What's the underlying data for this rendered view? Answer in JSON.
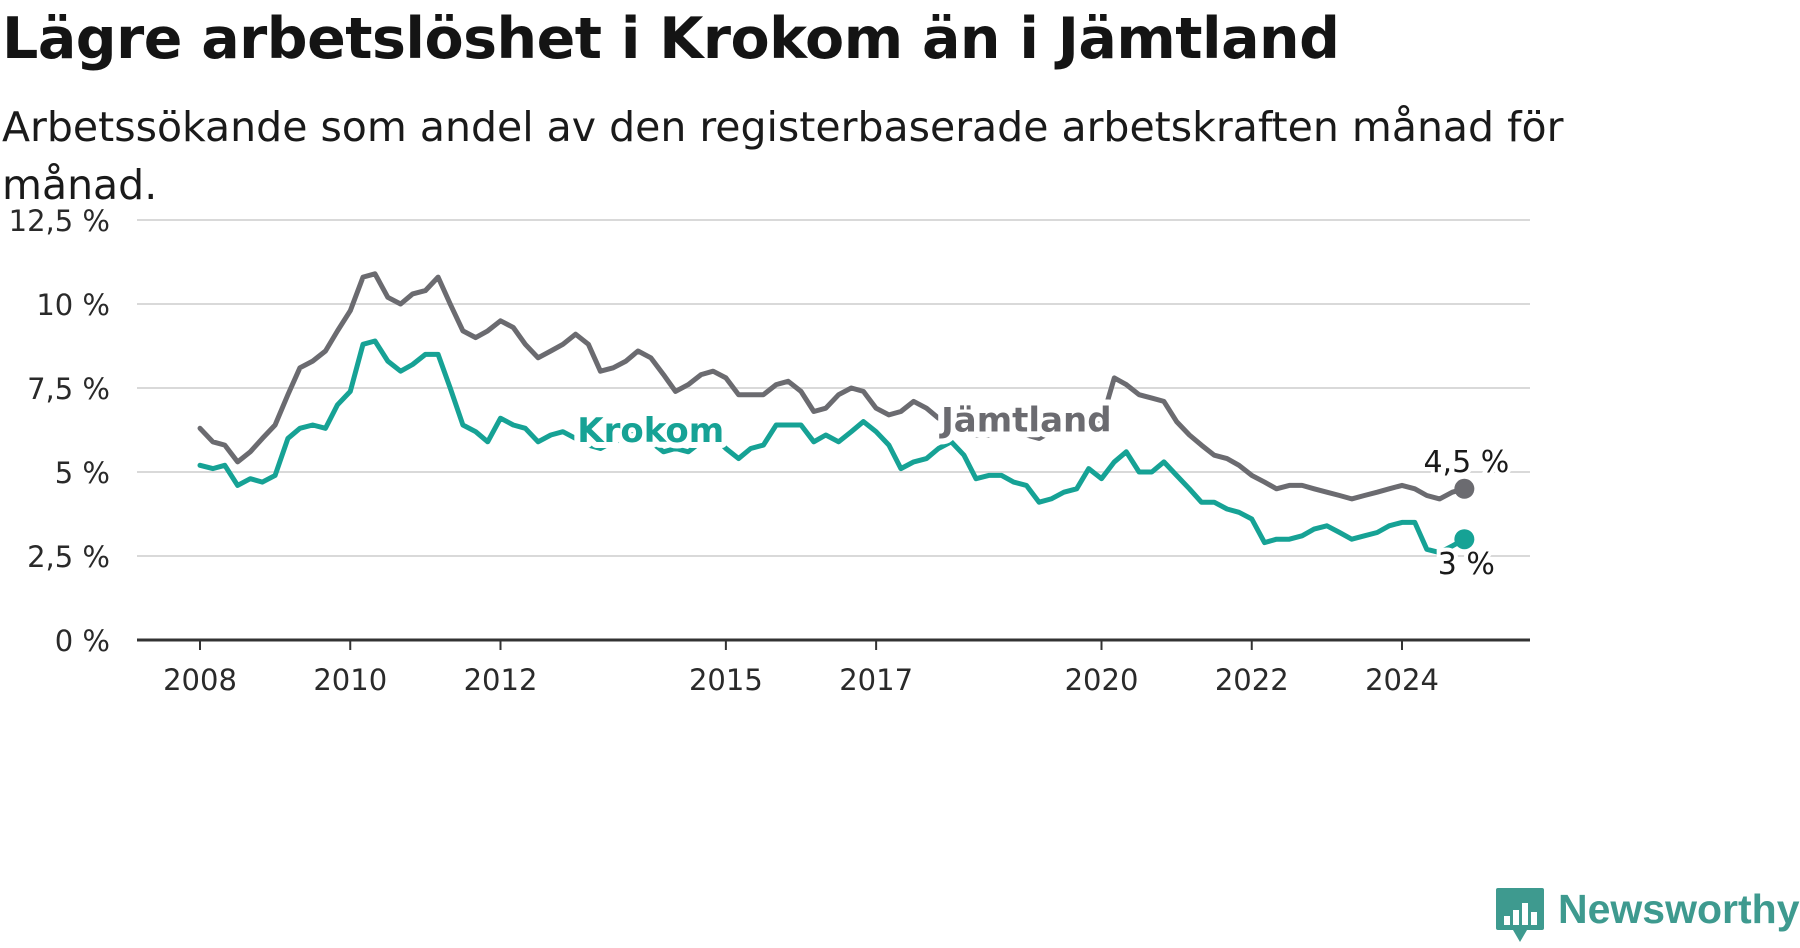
{
  "title": "Lägre arbetslöshet i Krokom än i Jämtland",
  "subtitle": "Arbetssökande som andel av den registerbaserade arbetskraften månad för månad.",
  "brand": {
    "name": "Newsworthy",
    "icon": "bar-chart-pin-icon"
  },
  "chart_data": {
    "type": "line",
    "title": "Lägre arbetslöshet i Krokom än i Jämtland",
    "subtitle": "Arbetssökande som andel av den registerbaserade arbetskraften månad för månad.",
    "ylim": [
      0,
      12.5
    ],
    "y_ticks": [
      0,
      2.5,
      5,
      7.5,
      10,
      12.5
    ],
    "y_tick_labels": [
      "0 %",
      "2,5 %",
      "5 %",
      "7,5 %",
      "10 %",
      "12,5 %"
    ],
    "xlim": [
      2007.83,
      2025.68
    ],
    "x_ticks": [
      2008,
      2010,
      2012,
      2015,
      2017,
      2020,
      2022,
      2024
    ],
    "x_tick_labels": [
      "2008",
      "2010",
      "2012",
      "2015",
      "2017",
      "2020",
      "2022",
      "2024"
    ],
    "grid": "horizontal",
    "series": [
      {
        "name": "Jämtland",
        "color": "#6b6b70",
        "end_label": "4,5 %",
        "x": [
          2008.0,
          2008.17,
          2008.33,
          2008.5,
          2008.67,
          2008.83,
          2009.0,
          2009.17,
          2009.33,
          2009.5,
          2009.67,
          2009.83,
          2010.0,
          2010.17,
          2010.33,
          2010.5,
          2010.67,
          2010.83,
          2011.0,
          2011.17,
          2011.33,
          2011.5,
          2011.67,
          2011.83,
          2012.0,
          2012.17,
          2012.33,
          2012.5,
          2012.67,
          2012.83,
          2013.0,
          2013.17,
          2013.33,
          2013.5,
          2013.67,
          2013.83,
          2014.0,
          2014.17,
          2014.33,
          2014.5,
          2014.67,
          2014.83,
          2015.0,
          2015.17,
          2015.33,
          2015.5,
          2015.67,
          2015.83,
          2016.0,
          2016.17,
          2016.33,
          2016.5,
          2016.67,
          2016.83,
          2017.0,
          2017.17,
          2017.33,
          2017.5,
          2017.67,
          2017.83,
          2018.0,
          2018.17,
          2018.33,
          2018.5,
          2018.67,
          2018.83,
          2019.0,
          2019.17,
          2019.33,
          2019.5,
          2019.67,
          2019.83,
          2020.0,
          2020.17,
          2020.33,
          2020.5,
          2020.67,
          2020.83,
          2021.0,
          2021.17,
          2021.33,
          2021.5,
          2021.67,
          2021.83,
          2022.0,
          2022.17,
          2022.33,
          2022.5,
          2022.67,
          2022.83,
          2023.0,
          2023.17,
          2023.33,
          2023.5,
          2023.67,
          2023.83,
          2024.0,
          2024.17,
          2024.33,
          2024.5,
          2024.67,
          2024.83
        ],
        "y": [
          6.3,
          5.9,
          5.8,
          5.3,
          5.6,
          6.0,
          6.4,
          7.3,
          8.1,
          8.3,
          8.6,
          9.2,
          9.8,
          10.8,
          10.9,
          10.2,
          10.0,
          10.3,
          10.4,
          10.8,
          10.0,
          9.2,
          9.0,
          9.2,
          9.5,
          9.3,
          8.8,
          8.4,
          8.6,
          8.8,
          9.1,
          8.8,
          8.0,
          8.1,
          8.3,
          8.6,
          8.4,
          7.9,
          7.4,
          7.6,
          7.9,
          8.0,
          7.8,
          7.3,
          7.3,
          7.3,
          7.6,
          7.7,
          7.4,
          6.8,
          6.9,
          7.3,
          7.5,
          7.4,
          6.9,
          6.7,
          6.8,
          7.1,
          6.9,
          6.6,
          6.5,
          6.3,
          6.1,
          6.1,
          6.2,
          6.3,
          6.1,
          6.0,
          6.2,
          6.5,
          6.4,
          6.3,
          6.5,
          7.8,
          7.6,
          7.3,
          7.2,
          7.1,
          6.5,
          6.1,
          5.8,
          5.5,
          5.4,
          5.2,
          4.9,
          4.7,
          4.5,
          4.6,
          4.6,
          4.5,
          4.4,
          4.3,
          4.2,
          4.3,
          4.4,
          4.5,
          4.6,
          4.5,
          4.3,
          4.2,
          4.4,
          4.5
        ]
      },
      {
        "name": "Krokom",
        "color": "#16a295",
        "end_label": "3 %",
        "x": [
          2008.0,
          2008.17,
          2008.33,
          2008.5,
          2008.67,
          2008.83,
          2009.0,
          2009.17,
          2009.33,
          2009.5,
          2009.67,
          2009.83,
          2010.0,
          2010.17,
          2010.33,
          2010.5,
          2010.67,
          2010.83,
          2011.0,
          2011.17,
          2011.33,
          2011.5,
          2011.67,
          2011.83,
          2012.0,
          2012.17,
          2012.33,
          2012.5,
          2012.67,
          2012.83,
          2013.0,
          2013.17,
          2013.33,
          2013.5,
          2013.67,
          2013.83,
          2014.0,
          2014.17,
          2014.33,
          2014.5,
          2014.67,
          2014.83,
          2015.0,
          2015.17,
          2015.33,
          2015.5,
          2015.67,
          2015.83,
          2016.0,
          2016.17,
          2016.33,
          2016.5,
          2016.67,
          2016.83,
          2017.0,
          2017.17,
          2017.33,
          2017.5,
          2017.67,
          2017.83,
          2018.0,
          2018.17,
          2018.33,
          2018.5,
          2018.67,
          2018.83,
          2019.0,
          2019.17,
          2019.33,
          2019.5,
          2019.67,
          2019.83,
          2020.0,
          2020.17,
          2020.33,
          2020.5,
          2020.67,
          2020.83,
          2021.0,
          2021.17,
          2021.33,
          2021.5,
          2021.67,
          2021.83,
          2022.0,
          2022.17,
          2022.33,
          2022.5,
          2022.67,
          2022.83,
          2023.0,
          2023.17,
          2023.33,
          2023.5,
          2023.67,
          2023.83,
          2024.0,
          2024.17,
          2024.33,
          2024.5,
          2024.67,
          2024.83
        ],
        "y": [
          5.2,
          5.1,
          5.2,
          4.6,
          4.8,
          4.7,
          4.9,
          6.0,
          6.3,
          6.4,
          6.3,
          7.0,
          7.4,
          8.8,
          8.9,
          8.3,
          8.0,
          8.2,
          8.5,
          8.5,
          7.5,
          6.4,
          6.2,
          5.9,
          6.6,
          6.4,
          6.3,
          5.9,
          6.1,
          6.2,
          6.0,
          5.8,
          5.7,
          5.9,
          6.0,
          6.2,
          5.9,
          5.6,
          5.7,
          5.6,
          5.9,
          6.1,
          5.7,
          5.4,
          5.7,
          5.8,
          6.4,
          6.4,
          6.4,
          5.9,
          6.1,
          5.9,
          6.2,
          6.5,
          6.2,
          5.8,
          5.1,
          5.3,
          5.4,
          5.7,
          5.9,
          5.5,
          4.8,
          4.9,
          4.9,
          4.7,
          4.6,
          4.1,
          4.2,
          4.4,
          4.5,
          5.1,
          4.8,
          5.3,
          5.6,
          5.0,
          5.0,
          5.3,
          4.9,
          4.5,
          4.1,
          4.1,
          3.9,
          3.8,
          3.6,
          2.9,
          3.0,
          3.0,
          3.1,
          3.3,
          3.4,
          3.2,
          3.0,
          3.1,
          3.2,
          3.4,
          3.5,
          3.5,
          2.7,
          2.6,
          2.8,
          3.0
        ]
      }
    ],
    "annotations": [
      {
        "text": "Krokom",
        "series": "Krokom",
        "x": 2014.0,
        "y": 5.9
      },
      {
        "text": "Jämtland",
        "series": "Jämtland",
        "x": 2019.0,
        "y": 6.2
      }
    ]
  }
}
